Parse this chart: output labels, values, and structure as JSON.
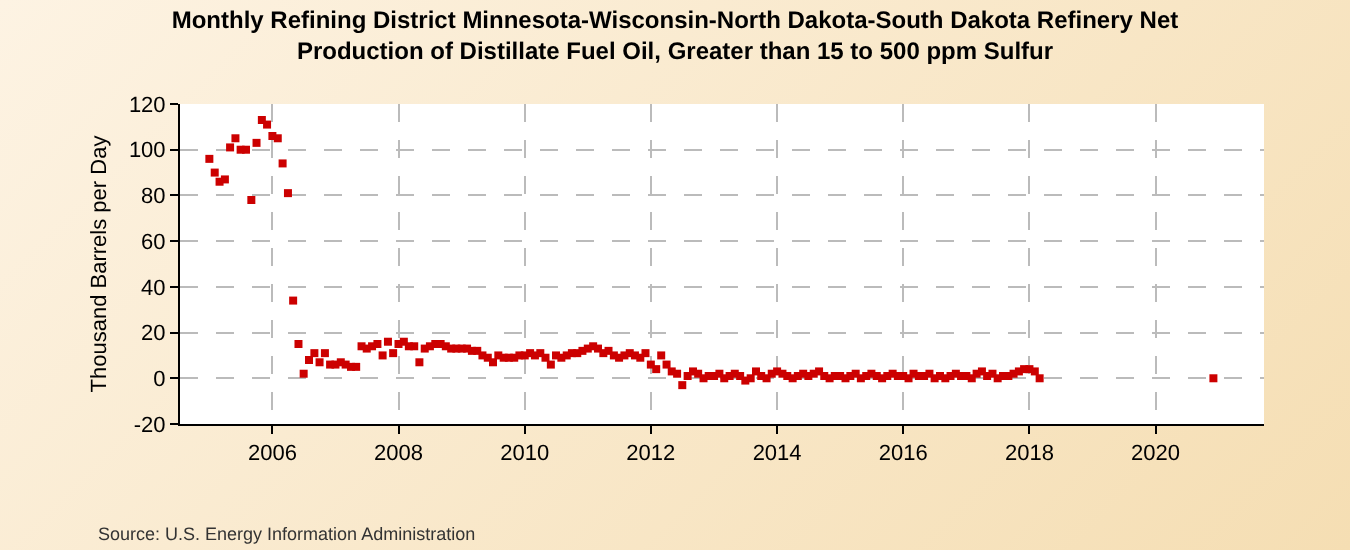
{
  "chart_data": {
    "type": "scatter",
    "title": "Monthly Refining District Minnesota-Wisconsin-North Dakota-South Dakota Refinery Net Production of Distillate Fuel Oil, Greater than 15 to 500 ppm Sulfur",
    "ylabel": "Thousand Barrels per Day",
    "annotations": [
      "Source: U.S. Energy Information Administration"
    ],
    "x": [
      "2005-01",
      "2005-02",
      "2005-03",
      "2005-04",
      "2005-05",
      "2005-06",
      "2005-07",
      "2005-08",
      "2005-09",
      "2005-10",
      "2005-11",
      "2005-12",
      "2006-01",
      "2006-02",
      "2006-03",
      "2006-04",
      "2006-05",
      "2006-06",
      "2006-07",
      "2006-08",
      "2006-09",
      "2006-10",
      "2006-11",
      "2006-12",
      "2007-01",
      "2007-02",
      "2007-03",
      "2007-04",
      "2007-05",
      "2007-06",
      "2007-07",
      "2007-08",
      "2007-09",
      "2007-10",
      "2007-11",
      "2007-12",
      "2008-01",
      "2008-02",
      "2008-03",
      "2008-04",
      "2008-05",
      "2008-06",
      "2008-07",
      "2008-08",
      "2008-09",
      "2008-10",
      "2008-11",
      "2008-12",
      "2009-01",
      "2009-02",
      "2009-03",
      "2009-04",
      "2009-05",
      "2009-06",
      "2009-07",
      "2009-08",
      "2009-09",
      "2009-10",
      "2009-11",
      "2009-12",
      "2010-01",
      "2010-02",
      "2010-03",
      "2010-04",
      "2010-05",
      "2010-06",
      "2010-07",
      "2010-08",
      "2010-09",
      "2010-10",
      "2010-11",
      "2010-12",
      "2011-01",
      "2011-02",
      "2011-03",
      "2011-04",
      "2011-05",
      "2011-06",
      "2011-07",
      "2011-08",
      "2011-09",
      "2011-10",
      "2011-11",
      "2011-12",
      "2012-01",
      "2012-02",
      "2012-03",
      "2012-04",
      "2012-05",
      "2012-06",
      "2012-07",
      "2012-08",
      "2012-09",
      "2012-10",
      "2012-11",
      "2012-12",
      "2013-01",
      "2013-02",
      "2013-03",
      "2013-04",
      "2013-05",
      "2013-06",
      "2013-07",
      "2013-08",
      "2013-09",
      "2013-10",
      "2013-11",
      "2013-12",
      "2014-01",
      "2014-02",
      "2014-03",
      "2014-04",
      "2014-05",
      "2014-06",
      "2014-07",
      "2014-08",
      "2014-09",
      "2014-10",
      "2014-11",
      "2014-12",
      "2015-01",
      "2015-02",
      "2015-03",
      "2015-04",
      "2015-05",
      "2015-06",
      "2015-07",
      "2015-08",
      "2015-09",
      "2015-10",
      "2015-11",
      "2015-12",
      "2016-01",
      "2016-02",
      "2016-03",
      "2016-04",
      "2016-05",
      "2016-06",
      "2016-07",
      "2016-08",
      "2016-09",
      "2016-10",
      "2016-11",
      "2016-12",
      "2017-01",
      "2017-02",
      "2017-03",
      "2017-04",
      "2017-05",
      "2017-06",
      "2017-07",
      "2017-08",
      "2017-09",
      "2017-10",
      "2017-11",
      "2017-12",
      "2018-01",
      "2018-02",
      "2018-03",
      "2020-12"
    ],
    "series": [
      {
        "color": "#cc0000",
        "values": [
          96,
          90,
          86,
          87,
          101,
          105,
          100,
          100,
          78,
          103,
          113,
          111,
          106,
          105,
          94,
          81,
          34,
          15,
          2,
          8,
          11,
          7,
          11,
          6,
          6,
          7,
          6,
          5,
          5,
          14,
          13,
          14,
          15,
          10,
          16,
          11,
          15,
          16,
          14,
          14,
          7,
          13,
          14,
          15,
          15,
          14,
          13,
          13,
          13,
          13,
          12,
          12,
          10,
          9,
          7,
          10,
          9,
          9,
          9,
          10,
          10,
          11,
          10,
          11,
          9,
          6,
          10,
          9,
          10,
          11,
          11,
          12,
          13,
          14,
          13,
          11,
          12,
          10,
          9,
          10,
          11,
          10,
          9,
          11,
          6,
          4,
          10,
          6,
          3,
          2,
          -3,
          1,
          3,
          2,
          0,
          1,
          1,
          2,
          0,
          1,
          2,
          1,
          -1,
          0,
          3,
          1,
          0,
          2,
          3,
          2,
          1,
          0,
          1,
          2,
          1,
          2,
          3,
          1,
          0,
          1,
          1,
          0,
          1,
          2,
          0,
          1,
          2,
          1,
          0,
          1,
          2,
          1,
          1,
          0,
          2,
          1,
          1,
          2,
          0,
          1,
          0,
          1,
          2,
          1,
          1,
          0,
          2,
          3,
          1,
          2,
          0,
          1,
          1,
          2,
          3,
          4,
          4,
          3,
          0,
          0
        ]
      }
    ],
    "xlim": [
      "2004-07-15",
      "2021-09-20"
    ],
    "xticks": [
      {
        "value": "2006-01-01",
        "label": "2006"
      },
      {
        "value": "2008-01-01",
        "label": "2008"
      },
      {
        "value": "2010-01-01",
        "label": "2010"
      },
      {
        "value": "2012-01-01",
        "label": "2012"
      },
      {
        "value": "2014-01-01",
        "label": "2014"
      },
      {
        "value": "2016-01-01",
        "label": "2016"
      },
      {
        "value": "2018-01-01",
        "label": "2018"
      },
      {
        "value": "2020-01-01",
        "label": "2020"
      }
    ],
    "ylim": [
      -20,
      120
    ],
    "yticks": [
      -20,
      0,
      20,
      40,
      60,
      80,
      100,
      120
    ],
    "grid": true,
    "marker": "square"
  }
}
